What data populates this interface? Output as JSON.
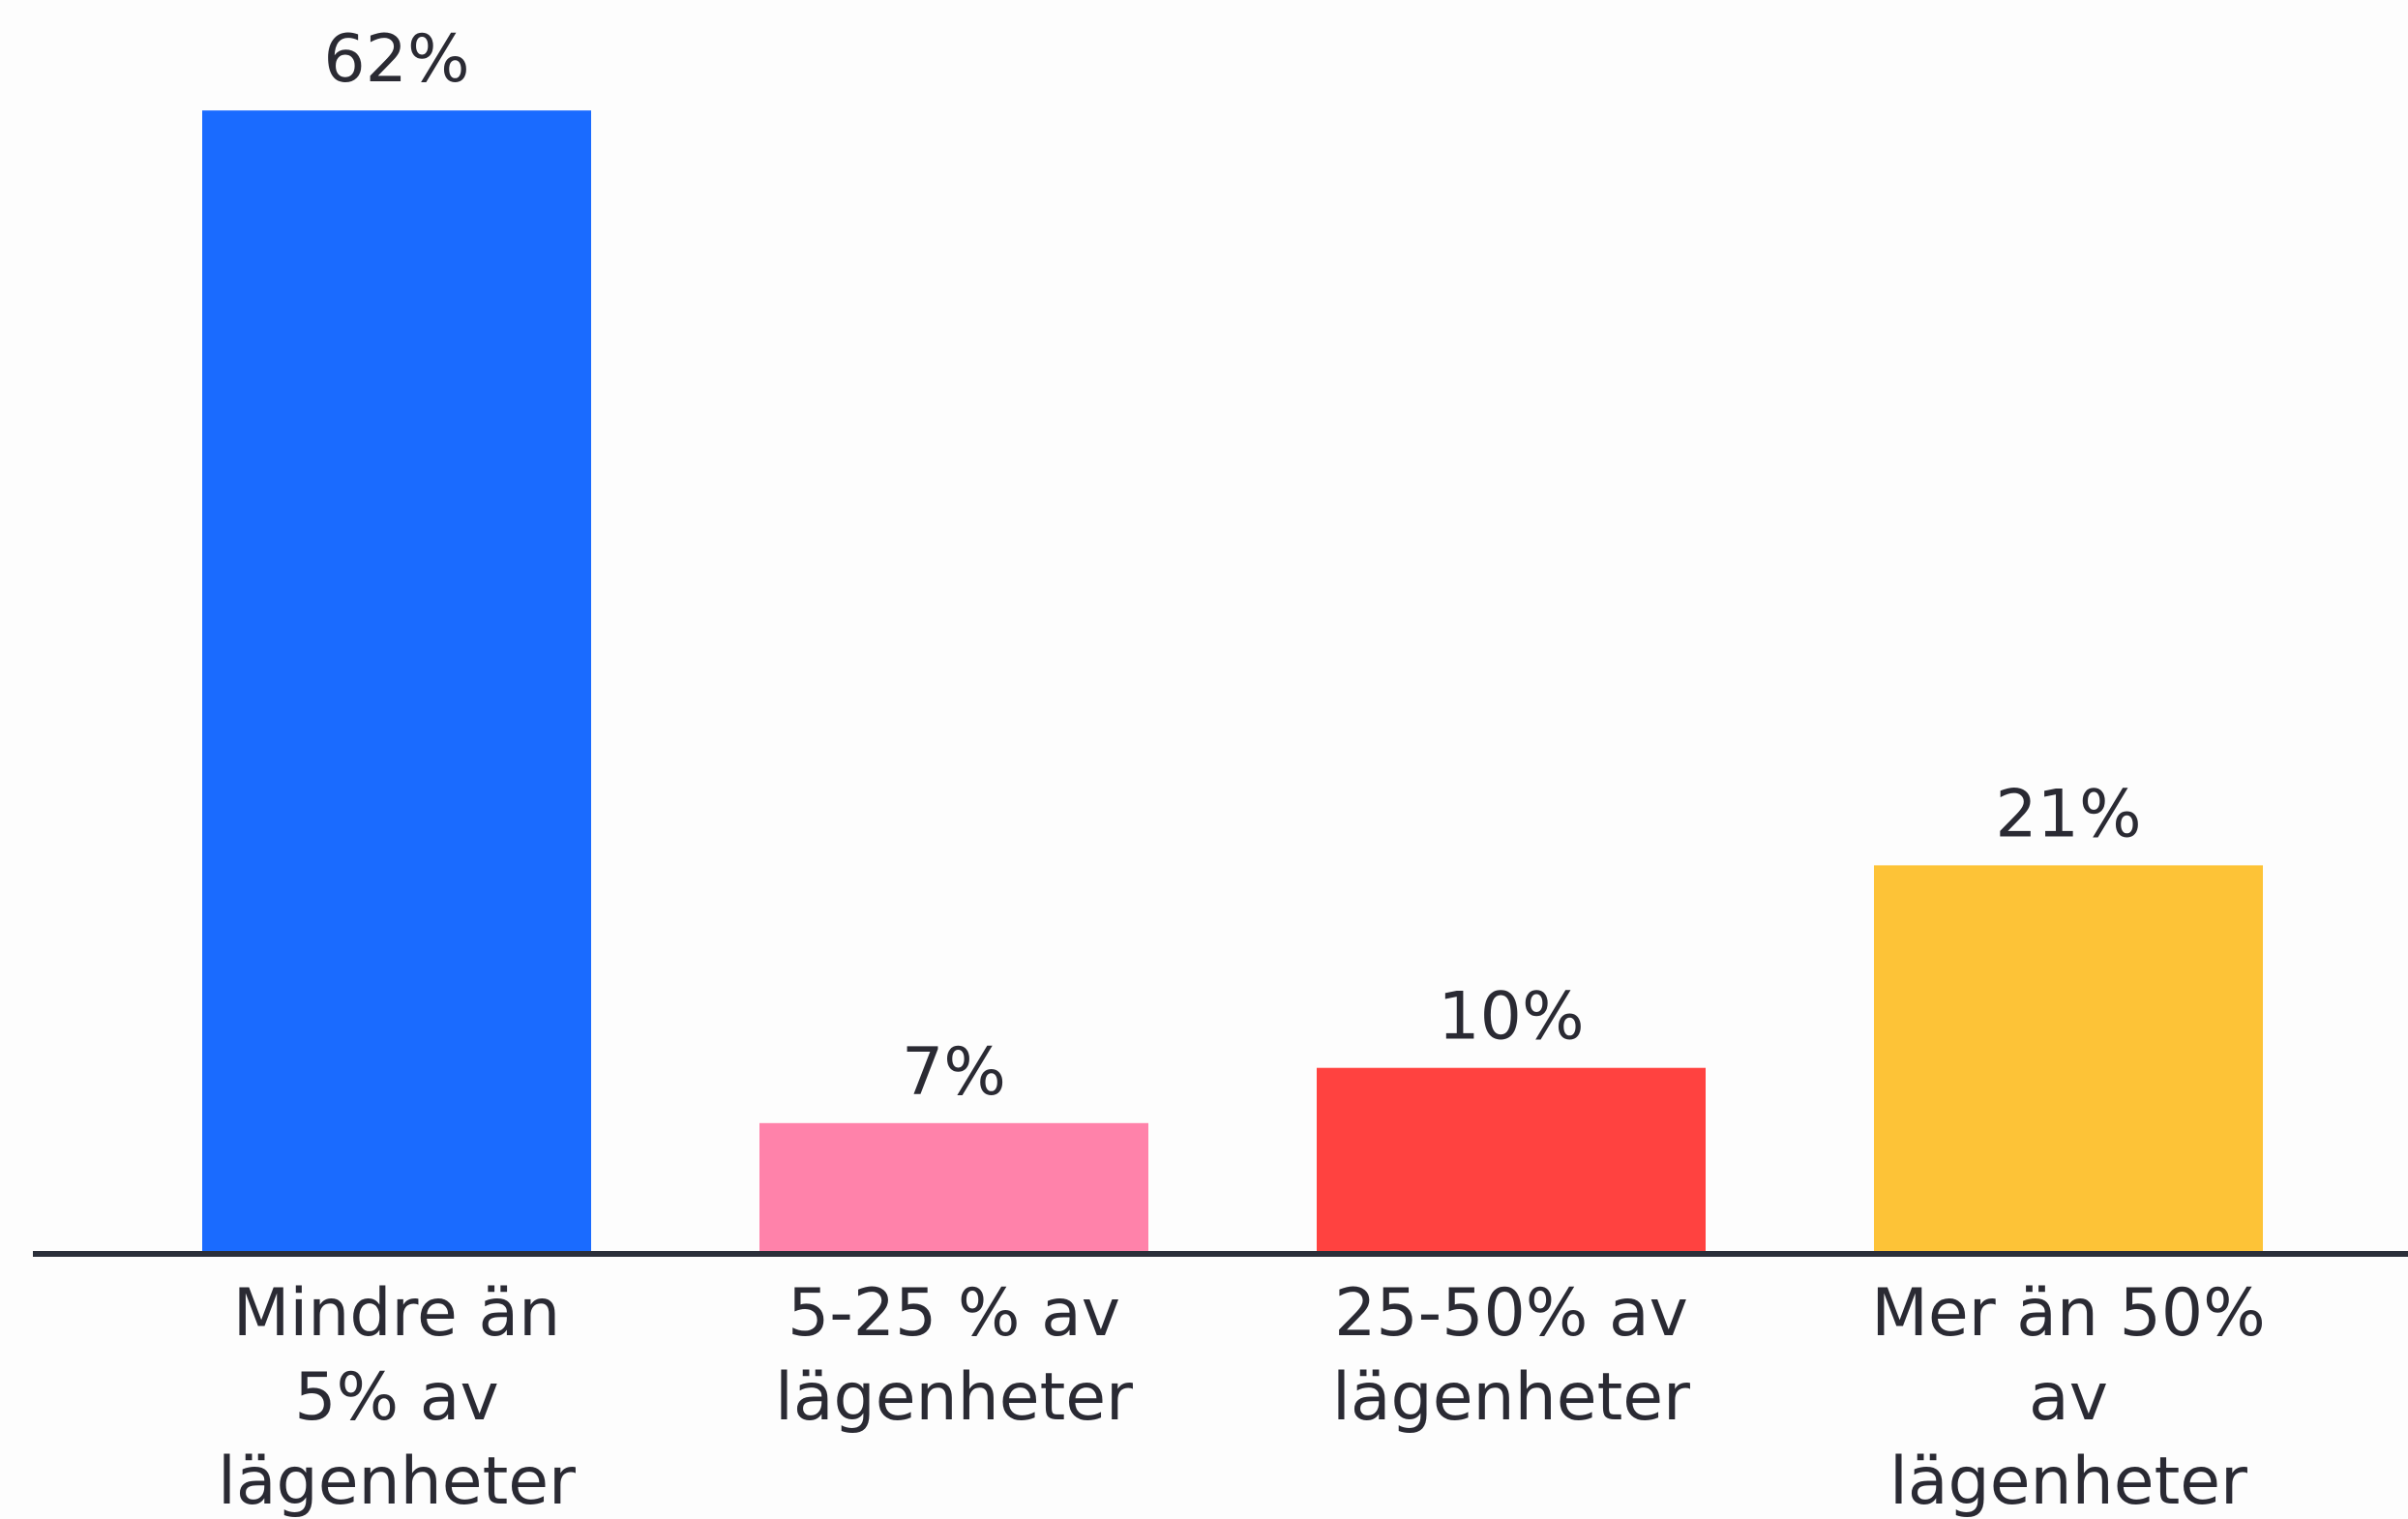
{
  "chart_data": {
    "type": "bar",
    "categories": [
      "Mindre än 5% av lägenheter",
      "5-25 % av lägenheter",
      "25-50% av lägenheter",
      "Mer än 50% av lägenheter"
    ],
    "values": [
      62,
      7,
      10,
      21
    ],
    "value_labels": [
      "62%",
      "7%",
      "10%",
      "21%"
    ],
    "colors": [
      "#1a6bff",
      "#ff82aa",
      "#ff4240",
      "#fdc337"
    ],
    "ylim": [
      0,
      68
    ]
  }
}
